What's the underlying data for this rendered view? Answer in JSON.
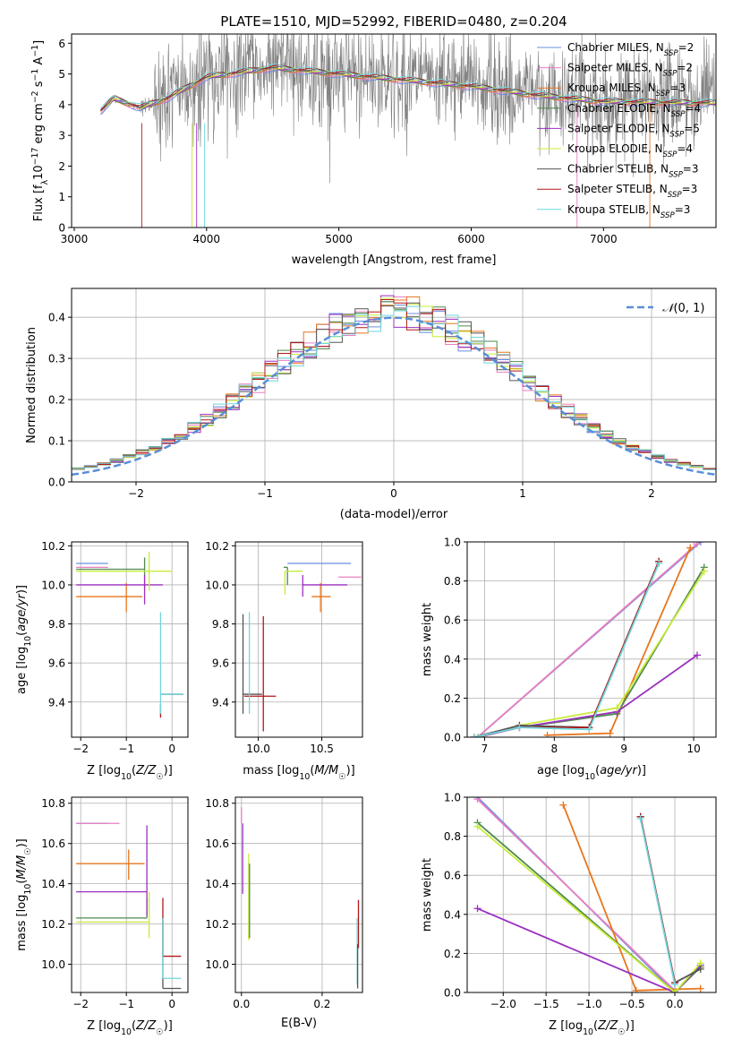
{
  "figure": {
    "title": "PLATE=1510, MJD=52992, FIBERID=0480, z=0.204"
  },
  "colors": {
    "Chabrier MILES": "#6a8fe0",
    "Salpeter MILES": "#e87fbf",
    "Kroupa MILES": "#e8761c",
    "Chabrier ELODIE": "#4f8a4f",
    "Salpeter ELODIE": "#9b2fc0",
    "Kroupa ELODIE": "#c8ec3a",
    "Chabrier STELIB": "#555555",
    "Salpeter STELIB": "#b01818",
    "Kroupa STELIB": "#6ed6dc",
    "data": "#808080",
    "normal": "#5a8ed6",
    "grid": "#b0b0b0"
  },
  "chart_data": [
    {
      "id": "spectrum",
      "type": "line",
      "xlabel": "wavelength [Angstrom, rest frame]",
      "ylabel": "Flux [f_λ 10^-17 erg cm^-2 s^-1 A^-1]",
      "xlim": [
        2980,
        7850
      ],
      "ylim": [
        0,
        6.3
      ],
      "xticks": [
        3000,
        4000,
        5000,
        6000,
        7000
      ],
      "yticks": [
        0,
        1,
        2,
        3,
        4,
        5,
        6
      ],
      "grid": false,
      "legend_position": "top-right",
      "legend": [
        {
          "name": "Chabrier MILES",
          "sub": "SSP",
          "n": "2"
        },
        {
          "name": "Salpeter MILES",
          "sub": "SSP",
          "n": "2"
        },
        {
          "name": "Kroupa MILES",
          "sub": "SSP",
          "n": "3"
        },
        {
          "name": "Chabrier ELODIE",
          "sub": "SSP",
          "n": "4"
        },
        {
          "name": "Salpeter ELODIE",
          "sub": "SSP",
          "n": "5"
        },
        {
          "name": "Kroupa ELODIE",
          "sub": "SSP",
          "n": "4"
        },
        {
          "name": "Chabrier STELIB",
          "sub": "SSP",
          "n": "3"
        },
        {
          "name": "Salpeter STELIB",
          "sub": "SSP",
          "n": "3"
        },
        {
          "name": "Kroupa STELIB",
          "sub": "SSP",
          "n": "3"
        }
      ],
      "data_range": [
        3200,
        7850
      ],
      "continuum": [
        [
          3200,
          3.8
        ],
        [
          3300,
          4.2
        ],
        [
          3500,
          3.9
        ],
        [
          3700,
          4.2
        ],
        [
          4000,
          4.9
        ],
        [
          4500,
          5.2
        ],
        [
          5000,
          5.0
        ],
        [
          5500,
          4.8
        ],
        [
          6000,
          4.6
        ],
        [
          6500,
          4.3
        ],
        [
          7000,
          4.1
        ],
        [
          7850,
          4.05
        ]
      ]
    },
    {
      "id": "residuals",
      "type": "histogram",
      "xlabel": "(data-model)/error",
      "ylabel": "Normed distribution",
      "xlim": [
        -2.5,
        2.5
      ],
      "ylim": [
        0,
        0.47
      ],
      "xticks": [
        -2,
        -1,
        0,
        1,
        2
      ],
      "yticks": [
        0.0,
        0.1,
        0.2,
        0.3,
        0.4
      ],
      "grid": true,
      "bin_width": 0.1,
      "normal_curve": {
        "label": "N(0,1)",
        "mean": 0,
        "sigma": 1
      },
      "legend_position": "top-right"
    },
    {
      "id": "age-vs-Z",
      "type": "errorbar",
      "xlabel": "Z [log10(Z/Z☉)]",
      "ylabel": "age  [log10(age/yr)]",
      "xlim": [
        -2.2,
        0.35
      ],
      "ylim": [
        9.22,
        10.22
      ],
      "xticks": [
        -2,
        -1,
        0
      ],
      "yticks": [
        9.4,
        9.6,
        9.8,
        10.0,
        10.2
      ],
      "grid": true,
      "points": [
        {
          "model": "Chabrier MILES",
          "x": -1.4,
          "xerr": [
            0.7,
            0.0
          ],
          "y": 10.11,
          "yerr": [
            0.0,
            0.0
          ]
        },
        {
          "model": "Salpeter MILES",
          "x": -1.4,
          "xerr": [
            0.7,
            0.0
          ],
          "y": 10.09,
          "yerr": [
            0.0,
            0.0
          ]
        },
        {
          "model": "Kroupa MILES",
          "x": -1.0,
          "xerr": [
            1.1,
            0.35
          ],
          "y": 9.94,
          "yerr": [
            0.08,
            0.07
          ]
        },
        {
          "model": "Chabrier ELODIE",
          "x": -0.6,
          "xerr": [
            1.5,
            0.0
          ],
          "y": 10.08,
          "yerr": [
            0.1,
            0.06
          ]
        },
        {
          "model": "Salpeter ELODIE",
          "x": -0.6,
          "xerr": [
            1.5,
            0.4
          ],
          "y": 10.0,
          "yerr": [
            0.1,
            0.05
          ]
        },
        {
          "model": "Kroupa ELODIE",
          "x": -0.5,
          "xerr": [
            1.6,
            0.5
          ],
          "y": 10.07,
          "yerr": [
            0.1,
            0.1
          ]
        },
        {
          "model": "Chabrier STELIB",
          "x": -0.25,
          "xerr": [
            0.0,
            0.5
          ],
          "y": 9.44,
          "yerr": [
            0.0,
            0.0
          ]
        },
        {
          "model": "Salpeter STELIB",
          "x": -0.25,
          "xerr": [
            0.0,
            0.0
          ],
          "y": 9.39,
          "yerr": [
            0.07,
            0.0
          ]
        },
        {
          "model": "Kroupa STELIB",
          "x": -0.25,
          "xerr": [
            0.0,
            0.5
          ],
          "y": 9.44,
          "yerr": [
            0.1,
            0.42
          ]
        }
      ]
    },
    {
      "id": "age-vs-mass",
      "type": "errorbar",
      "xlabel": "mass [log10(M/M☉)]",
      "ylabel": "",
      "xlim": [
        9.82,
        10.82
      ],
      "ylim": [
        9.22,
        10.22
      ],
      "xticks": [
        10.0,
        10.5
      ],
      "yticks": [
        9.4,
        9.6,
        9.8,
        10.0,
        10.2
      ],
      "grid": true,
      "points": [
        {
          "model": "Chabrier MILES",
          "x": 10.48,
          "xerr": [
            0.25,
            0.25
          ],
          "y": 10.11,
          "yerr": [
            0.0,
            0.0
          ]
        },
        {
          "model": "Salpeter MILES",
          "x": 10.69,
          "xerr": [
            0.06,
            0.12
          ],
          "y": 10.04,
          "yerr": [
            0.0,
            0.0
          ]
        },
        {
          "model": "Kroupa MILES",
          "x": 10.49,
          "xerr": [
            0.07,
            0.08
          ],
          "y": 9.94,
          "yerr": [
            0.08,
            0.07
          ]
        },
        {
          "model": "Chabrier ELODIE",
          "x": 10.23,
          "xerr": [
            0.03,
            0.0
          ],
          "y": 10.09,
          "yerr": [
            0.09,
            0.0
          ]
        },
        {
          "model": "Salpeter ELODIE",
          "x": 10.35,
          "xerr": [
            0.0,
            0.35
          ],
          "y": 10.0,
          "yerr": [
            0.06,
            0.05
          ]
        },
        {
          "model": "Kroupa ELODIE",
          "x": 10.21,
          "xerr": [
            0.0,
            0.14
          ],
          "y": 10.07,
          "yerr": [
            0.12,
            0.0
          ]
        },
        {
          "model": "Chabrier STELIB",
          "x": 9.88,
          "xerr": [
            0.0,
            0.15
          ],
          "y": 9.44,
          "yerr": [
            0.1,
            0.41
          ]
        },
        {
          "model": "Salpeter STELIB",
          "x": 10.04,
          "xerr": [
            0.15,
            0.1
          ],
          "y": 9.43,
          "yerr": [
            0.18,
            0.41
          ]
        },
        {
          "model": "Kroupa STELIB",
          "x": 9.93,
          "xerr": [
            0.0,
            0.0
          ],
          "y": 9.44,
          "yerr": [
            0.1,
            0.42
          ]
        }
      ]
    },
    {
      "id": "weight-vs-age",
      "type": "line",
      "xlabel": "age  [log10(age/yr)]",
      "ylabel": "mass weight",
      "xlim": [
        6.75,
        10.32
      ],
      "ylim": [
        0,
        1
      ],
      "xticks": [
        7,
        8,
        9,
        10
      ],
      "yticks": [
        0.0,
        0.2,
        0.4,
        0.6,
        0.8,
        1.0
      ],
      "grid": true,
      "series": [
        {
          "model": "Chabrier MILES",
          "x": [
            6.9,
            10.1
          ],
          "y": [
            0.0,
            1.0
          ]
        },
        {
          "model": "Salpeter MILES",
          "x": [
            6.9,
            10.05
          ],
          "y": [
            0.0,
            0.99
          ]
        },
        {
          "model": "Kroupa MILES",
          "x": [
            7.9,
            8.8,
            9.95
          ],
          "y": [
            0.01,
            0.02,
            0.97
          ]
        },
        {
          "model": "Chabrier ELODIE",
          "x": [
            6.9,
            7.5,
            8.9,
            10.15
          ],
          "y": [
            0.0,
            0.05,
            0.12,
            0.87
          ]
        },
        {
          "model": "Salpeter ELODIE",
          "x": [
            6.9,
            7.5,
            8.9,
            10.05
          ],
          "y": [
            0.0,
            0.05,
            0.13,
            0.42
          ]
        },
        {
          "model": "Kroupa ELODIE",
          "x": [
            6.9,
            7.5,
            8.9,
            10.15
          ],
          "y": [
            0.0,
            0.06,
            0.15,
            0.85
          ]
        },
        {
          "model": "Chabrier STELIB",
          "x": [
            6.85,
            7.5,
            8.5,
            9.5
          ],
          "y": [
            0.0,
            0.06,
            0.05,
            0.9
          ]
        },
        {
          "model": "Salpeter STELIB",
          "x": [
            6.85,
            7.5,
            8.5,
            9.5
          ],
          "y": [
            0.0,
            0.05,
            0.05,
            0.9
          ]
        },
        {
          "model": "Kroupa STELIB",
          "x": [
            6.85,
            7.5,
            8.5,
            9.5
          ],
          "y": [
            0.0,
            0.05,
            0.04,
            0.89
          ]
        }
      ]
    },
    {
      "id": "mass-vs-Z",
      "type": "errorbar",
      "xlabel": "Z [log10(Z/Z☉)]",
      "ylabel": "mass [log10(M/M☉)]",
      "xlim": [
        -2.2,
        0.35
      ],
      "ylim": [
        9.86,
        10.83
      ],
      "xticks": [
        -2,
        -1,
        0
      ],
      "yticks": [
        10.0,
        10.2,
        10.4,
        10.6,
        10.8
      ],
      "grid": true,
      "points": [
        {
          "model": "Chabrier MILES",
          "x": -1.4,
          "xerr": [
            0.7,
            0.0
          ],
          "y": 10.7,
          "yerr": [
            0.0,
            0.0
          ]
        },
        {
          "model": "Salpeter MILES",
          "x": -1.3,
          "xerr": [
            0.8,
            0.15
          ],
          "y": 10.7,
          "yerr": [
            0.0,
            0.0
          ]
        },
        {
          "model": "Kroupa MILES",
          "x": -0.95,
          "xerr": [
            1.15,
            0.35
          ],
          "y": 10.5,
          "yerr": [
            0.08,
            0.07
          ]
        },
        {
          "model": "Chabrier ELODIE",
          "x": -0.55,
          "xerr": [
            1.55,
            0.0
          ],
          "y": 10.23,
          "yerr": [
            0.0,
            0.1
          ]
        },
        {
          "model": "Salpeter ELODIE",
          "x": -0.55,
          "xerr": [
            1.55,
            0.0
          ],
          "y": 10.36,
          "yerr": [
            0.12,
            0.33
          ]
        },
        {
          "model": "Kroupa ELODIE",
          "x": -0.5,
          "xerr": [
            1.6,
            0.0
          ],
          "y": 10.21,
          "yerr": [
            0.08,
            0.15
          ]
        },
        {
          "model": "Chabrier STELIB",
          "x": -0.2,
          "xerr": [
            0.0,
            0.4
          ],
          "y": 9.88,
          "yerr": [
            0.0,
            0.35
          ]
        },
        {
          "model": "Salpeter STELIB",
          "x": -0.2,
          "xerr": [
            0.0,
            0.4
          ],
          "y": 10.04,
          "yerr": [
            0.0,
            0.29
          ]
        },
        {
          "model": "Kroupa STELIB",
          "x": -0.2,
          "xerr": [
            0.0,
            0.4
          ],
          "y": 9.93,
          "yerr": [
            0.0,
            0.3
          ]
        }
      ]
    },
    {
      "id": "mass-vs-ebv",
      "type": "errorbar",
      "xlabel": "E(B-V)",
      "ylabel": "",
      "xlim": [
        -0.015,
        0.3
      ],
      "ylim": [
        9.86,
        10.83
      ],
      "xticks": [
        0.0,
        0.2
      ],
      "yticks": [
        10.0,
        10.2,
        10.4,
        10.6,
        10.8
      ],
      "grid": true,
      "points": [
        {
          "model": "Salpeter MILES",
          "x": 0.0,
          "xerr": [
            0.0,
            0.0
          ],
          "y": 10.7,
          "yerr": [
            0.0,
            0.08
          ]
        },
        {
          "model": "Salpeter ELODIE",
          "x": 0.003,
          "xerr": [
            0.0,
            0.0
          ],
          "y": 10.5,
          "yerr": [
            0.15,
            0.2
          ]
        },
        {
          "model": "Kroupa ELODIE",
          "x": 0.018,
          "xerr": [
            0.0,
            0.0
          ],
          "y": 10.3,
          "yerr": [
            0.18,
            0.25
          ]
        },
        {
          "model": "Chabrier ELODIE",
          "x": 0.02,
          "xerr": [
            0.0,
            0.0
          ],
          "y": 10.3,
          "yerr": [
            0.17,
            0.2
          ]
        },
        {
          "model": "Salpeter STELIB",
          "x": 0.29,
          "xerr": [
            0.0,
            0.0
          ],
          "y": 10.2,
          "yerr": [
            0.12,
            0.12
          ]
        },
        {
          "model": "Kroupa STELIB",
          "x": 0.287,
          "xerr": [
            0.0,
            0.0
          ],
          "y": 10.05,
          "yerr": [
            0.15,
            0.18
          ]
        },
        {
          "model": "Chabrier STELIB",
          "x": 0.288,
          "xerr": [
            0.0,
            0.0
          ],
          "y": 9.95,
          "yerr": [
            0.07,
            0.15
          ]
        }
      ]
    },
    {
      "id": "weight-vs-Z",
      "type": "line",
      "xlabel": "Z [log10(Z/Z☉)]",
      "ylabel": "mass weight",
      "xlim": [
        -2.42,
        0.48
      ],
      "ylim": [
        0,
        1
      ],
      "xticks": [
        -2.0,
        -1.5,
        -1.0,
        -0.5,
        0.0
      ],
      "yticks": [
        0.0,
        0.2,
        0.4,
        0.6,
        0.8,
        1.0
      ],
      "grid": true,
      "series": [
        {
          "model": "Chabrier MILES",
          "x": [
            -2.3,
            0.0
          ],
          "y": [
            1.0,
            0.0
          ]
        },
        {
          "model": "Salpeter MILES",
          "x": [
            -2.3,
            0.0
          ],
          "y": [
            0.99,
            0.01
          ]
        },
        {
          "model": "Kroupa MILES",
          "x": [
            -1.3,
            -0.45,
            0.3
          ],
          "y": [
            0.96,
            0.01,
            0.02
          ]
        },
        {
          "model": "Chabrier ELODIE",
          "x": [
            -2.3,
            0.0,
            0.3
          ],
          "y": [
            0.87,
            0.0,
            0.13
          ]
        },
        {
          "model": "Salpeter ELODIE",
          "x": [
            -2.3,
            0.0,
            0.3
          ],
          "y": [
            0.43,
            0.0,
            0.14
          ]
        },
        {
          "model": "Kroupa ELODIE",
          "x": [
            -2.3,
            0.0,
            0.3
          ],
          "y": [
            0.85,
            0.0,
            0.15
          ]
        },
        {
          "model": "Chabrier STELIB",
          "x": [
            -0.4,
            0.0,
            0.3
          ],
          "y": [
            0.9,
            0.05,
            0.12
          ]
        },
        {
          "model": "Salpeter STELIB",
          "x": [
            -0.4,
            0.0
          ],
          "y": [
            0.9,
            0.05
          ]
        },
        {
          "model": "Kroupa STELIB",
          "x": [
            -0.4,
            0.0
          ],
          "y": [
            0.89,
            0.04
          ]
        }
      ]
    }
  ]
}
